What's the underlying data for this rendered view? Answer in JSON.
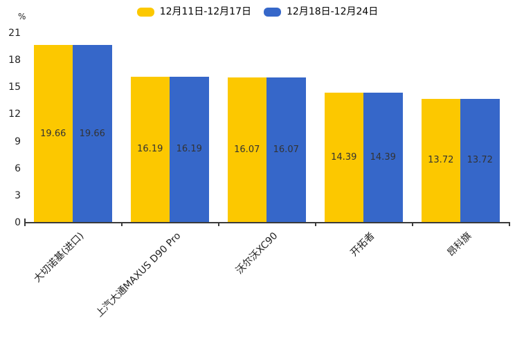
{
  "legend": {
    "items": [
      {
        "label": "12月11日-12月17日",
        "color": "#FCC800"
      },
      {
        "label": "12月18日-12月24日",
        "color": "#3667C9"
      }
    ]
  },
  "chart_data": {
    "type": "bar",
    "title": "",
    "unit": "%",
    "categories": [
      "大切诺基(进口)",
      "上汽大通MAXUS D90 Pro",
      "沃尔沃XC90",
      "开拓者",
      "昂科旗"
    ],
    "series": [
      {
        "name": "12月11日-12月17日",
        "color": "#FCC800",
        "values": [
          19.66,
          16.19,
          16.07,
          14.39,
          13.72
        ]
      },
      {
        "name": "12月18日-12月24日",
        "color": "#3667C9",
        "values": [
          19.66,
          16.19,
          16.07,
          14.39,
          13.72
        ]
      }
    ],
    "xlabel": "",
    "ylabel": "%",
    "yticks": [
      0,
      3,
      6,
      9,
      12,
      15,
      18,
      21
    ],
    "ylim": [
      0,
      21
    ],
    "grid": false,
    "legend_position": "top",
    "value_labels": "inside-center",
    "axis_color": "#3a3a3a"
  }
}
